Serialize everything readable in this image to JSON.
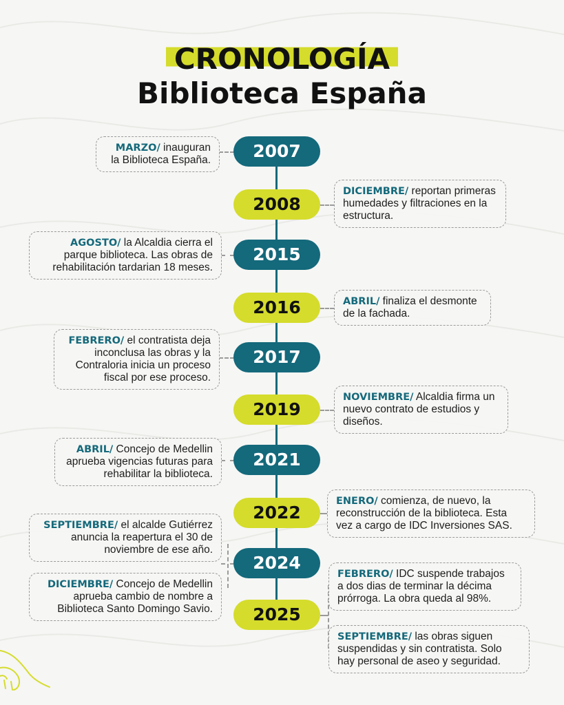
{
  "header": {
    "title": "CRONOLOGÍA",
    "subtitle": "Biblioteca España"
  },
  "colors": {
    "teal": "#14697b",
    "lime": "#d5dc2b",
    "background": "#f6f6f4"
  },
  "timeline": {
    "years": [
      "2007",
      "2008",
      "2015",
      "2016",
      "2017",
      "2019",
      "2021",
      "2022",
      "2024",
      "2025"
    ],
    "events": [
      {
        "month": "MARZO/",
        "text": " inauguran la Biblioteca España."
      },
      {
        "month": "DICIEMBRE/",
        "text": " reportan primeras humedades y filtraciones en la estructura."
      },
      {
        "month": "AGOSTO/",
        "text": " la Alcaldia cierra el parque biblioteca. Las obras de rehabilitación tardarian 18 meses."
      },
      {
        "month": "ABRIL/",
        "text": " finaliza el desmonte de la fachada."
      },
      {
        "month": "FEBRERO/",
        "text": " el contratista deja inconclusa las obras y la Contraloria inicia un proceso fiscal por ese proceso."
      },
      {
        "month": "NOVIEMBRE/",
        "text": " Alcaldia firma un nuevo contrato de estudios y diseños."
      },
      {
        "month": "ABRIL/",
        "text": " Concejo de Medellin aprueba vigencias futuras para rehabilitar la biblioteca."
      },
      {
        "month": "ENERO/",
        "text": " comienza, de nuevo, la reconstrucción de la biblioteca. Esta vez a cargo de IDC Inversiones SAS."
      },
      {
        "month": "SEPTIEMBRE/",
        "text": " el alcalde Gutiérrez anuncia la reapertura el 30 de noviembre de ese año."
      },
      {
        "month": "DICIEMBRE/",
        "text": " Concejo de Medellin aprueba cambio de nombre a Biblioteca Santo Domingo Savio."
      },
      {
        "month": "FEBRERO/",
        "text": " IDC suspende trabajos a dos dias de terminar la décima prórroga. La obra queda al 98%."
      },
      {
        "month": "SEPTIEMBRE/",
        "text": " las obras siguen suspendidas y sin contratista. Solo hay personal de aseo y seguridad."
      }
    ]
  }
}
